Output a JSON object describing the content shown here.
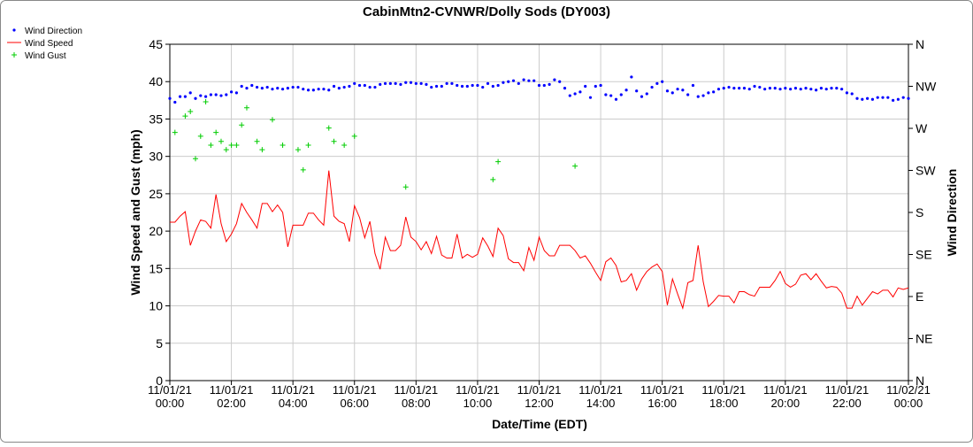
{
  "chart_data": {
    "type": "line",
    "title": "CabinMtn2-CVNWR/Dolly Sods (DY003)",
    "x_label": "Date/Time (EDT)",
    "y_label": "Wind Speed and Gust (mph)",
    "y2_label": "Wind Direction",
    "grid": true,
    "legend": "top-left",
    "xlim": [
      0,
      1440
    ],
    "xticks": [
      {
        "value": 0,
        "label": "11/01/21 00:00"
      },
      {
        "value": 120,
        "label": "11/01/21 02:00"
      },
      {
        "value": 240,
        "label": "11/01/21 04:00"
      },
      {
        "value": 360,
        "label": "11/01/21 06:00"
      },
      {
        "value": 480,
        "label": "11/01/21 08:00"
      },
      {
        "value": 600,
        "label": "11/01/21 10:00"
      },
      {
        "value": 720,
        "label": "11/01/21 12:00"
      },
      {
        "value": 840,
        "label": "11/01/21 14:00"
      },
      {
        "value": 960,
        "label": "11/01/21 16:00"
      },
      {
        "value": 1080,
        "label": "11/01/21 18:00"
      },
      {
        "value": 1200,
        "label": "11/01/21 20:00"
      },
      {
        "value": 1320,
        "label": "11/01/21 22:00"
      },
      {
        "value": 1440,
        "label": "11/02/21 00:00"
      }
    ],
    "ylim": [
      0,
      45
    ],
    "yticks": [
      0,
      5,
      10,
      15,
      20,
      25,
      30,
      35,
      40,
      45
    ],
    "y2lim": [
      0,
      360
    ],
    "y2ticks": [
      {
        "value": 0,
        "label": "N"
      },
      {
        "value": 45,
        "label": "NE"
      },
      {
        "value": 90,
        "label": "E"
      },
      {
        "value": 135,
        "label": "SE"
      },
      {
        "value": 180,
        "label": "S"
      },
      {
        "value": 225,
        "label": "SW"
      },
      {
        "value": 270,
        "label": "W"
      },
      {
        "value": 315,
        "label": "NW"
      },
      {
        "value": 360,
        "label": "N"
      }
    ],
    "x": [
      0,
      10,
      20,
      30,
      40,
      50,
      60,
      70,
      80,
      90,
      100,
      110,
      120,
      130,
      140,
      150,
      160,
      170,
      180,
      190,
      200,
      210,
      220,
      230,
      240,
      250,
      260,
      270,
      280,
      290,
      300,
      310,
      320,
      330,
      340,
      350,
      360,
      370,
      380,
      390,
      400,
      410,
      420,
      430,
      440,
      450,
      460,
      470,
      480,
      490,
      500,
      510,
      520,
      530,
      540,
      550,
      560,
      570,
      580,
      590,
      600,
      610,
      620,
      630,
      640,
      650,
      660,
      670,
      680,
      690,
      700,
      710,
      720,
      730,
      740,
      750,
      760,
      770,
      780,
      790,
      800,
      810,
      820,
      830,
      840,
      850,
      860,
      870,
      880,
      890,
      900,
      910,
      920,
      930,
      940,
      950,
      960,
      970,
      980,
      990,
      1000,
      1010,
      1020,
      1030,
      1040,
      1050,
      1060,
      1070,
      1080,
      1090,
      1100,
      1110,
      1120,
      1130,
      1140,
      1150,
      1160,
      1170,
      1180,
      1190,
      1200,
      1210,
      1220,
      1230,
      1240,
      1250,
      1260,
      1270,
      1280,
      1290,
      1300,
      1310,
      1320,
      1330,
      1340,
      1350,
      1360,
      1370,
      1380,
      1390,
      1400,
      1410,
      1420,
      1430,
      1440
    ],
    "series": [
      {
        "name": "Wind Direction",
        "type": "scatter",
        "marker": "dot",
        "color": "#0000ff",
        "axis": "y2",
        "values": [
          302,
          298,
          304,
          304,
          308,
          302,
          305,
          304,
          306,
          306,
          305,
          306,
          309,
          308,
          315,
          313,
          316,
          314,
          313,
          314,
          312,
          313,
          312,
          313,
          314,
          314,
          312,
          311,
          311,
          312,
          312,
          311,
          315,
          313,
          314,
          315,
          318,
          316,
          316,
          314,
          314,
          317,
          318,
          318,
          318,
          317,
          319,
          319,
          318,
          318,
          317,
          314,
          315,
          315,
          318,
          318,
          316,
          315,
          315,
          316,
          316,
          314,
          318,
          315,
          316,
          319,
          320,
          321,
          318,
          322,
          321,
          321,
          316,
          316,
          317,
          322,
          320,
          313,
          305,
          307,
          309,
          315,
          303,
          315,
          316,
          306,
          305,
          301,
          306,
          311,
          325,
          310,
          304,
          307,
          314,
          318,
          320,
          310,
          308,
          312,
          311,
          306,
          316,
          304,
          305,
          308,
          309,
          312,
          313,
          314,
          313,
          313,
          313,
          312,
          315,
          314,
          312,
          313,
          313,
          312,
          313,
          312,
          313,
          312,
          313,
          312,
          311,
          313,
          312,
          313,
          313,
          312,
          308,
          307,
          302,
          301,
          302,
          301,
          303,
          303,
          303,
          300,
          301,
          303,
          302
        ]
      },
      {
        "name": "Wind Speed",
        "type": "line",
        "color": "#ff0000",
        "values": [
          21.2,
          21.2,
          22,
          22.6,
          18.1,
          20,
          21.5,
          21.3,
          20.4,
          24.9,
          21,
          18.6,
          19.6,
          21,
          23.7,
          22.5,
          21.5,
          20.4,
          23.7,
          23.7,
          22.6,
          23.5,
          22.5,
          17.9,
          20.8,
          20.8,
          20.8,
          22.4,
          22.4,
          21.5,
          20.8,
          28.1,
          22,
          21.3,
          21,
          18.6,
          23.4,
          21.8,
          19.1,
          21.3,
          17,
          14.9,
          19.2,
          17.4,
          17.4,
          18.1,
          21.9,
          19.2,
          18.6,
          17.5,
          18.6,
          17,
          19.3,
          16.8,
          16.4,
          16.4,
          19.6,
          16.4,
          16.9,
          16.5,
          16.9,
          19.1,
          18,
          16.6,
          20.4,
          19.4,
          16.3,
          15.8,
          15.8,
          14.7,
          17.8,
          16.1,
          19.2,
          17.4,
          16.7,
          16.7,
          18.1,
          18.1,
          18.1,
          17.4,
          16.4,
          16.7,
          15.7,
          14.5,
          13.4,
          15.9,
          16.4,
          15.4,
          13.2,
          13.4,
          14.3,
          12.1,
          13.6,
          14.6,
          15.2,
          15.6,
          14.6,
          10.1,
          13.6,
          11.6,
          9.7,
          13.1,
          13.4,
          18.1,
          13.2,
          9.9,
          10.6,
          11.4,
          11.3,
          11.3,
          10.4,
          11.9,
          11.9,
          11.5,
          11.3,
          12.5,
          12.5,
          12.5,
          13.4,
          14.6,
          13,
          12.5,
          12.9,
          14.1,
          14.3,
          13.5,
          14.3,
          13.3,
          12.4,
          12.6,
          12.5,
          11.7,
          9.7,
          9.7,
          11.3,
          10.1,
          11,
          11.9,
          11.6,
          12.1,
          12.1,
          11.2,
          12.4,
          12.2,
          12.4
        ]
      },
      {
        "name": "Wind Gust",
        "type": "scatter",
        "marker": "plus",
        "color": "#00cc00",
        "x": [
          10,
          30,
          40,
          50,
          60,
          70,
          80,
          90,
          100,
          110,
          120,
          130,
          140,
          150,
          170,
          180,
          200,
          220,
          250,
          260,
          270,
          310,
          320,
          340,
          360,
          460,
          630,
          640,
          790
        ],
        "values": [
          33.2,
          35.4,
          36,
          29.7,
          32.7,
          37.3,
          31.5,
          33.2,
          32,
          30.9,
          31.5,
          31.5,
          34.2,
          36.5,
          32,
          30.9,
          34.9,
          31.5,
          30.9,
          28.2,
          31.5,
          33.8,
          32,
          31.5,
          32.7,
          25.9,
          26.9,
          29.3,
          28.7
        ]
      }
    ]
  }
}
